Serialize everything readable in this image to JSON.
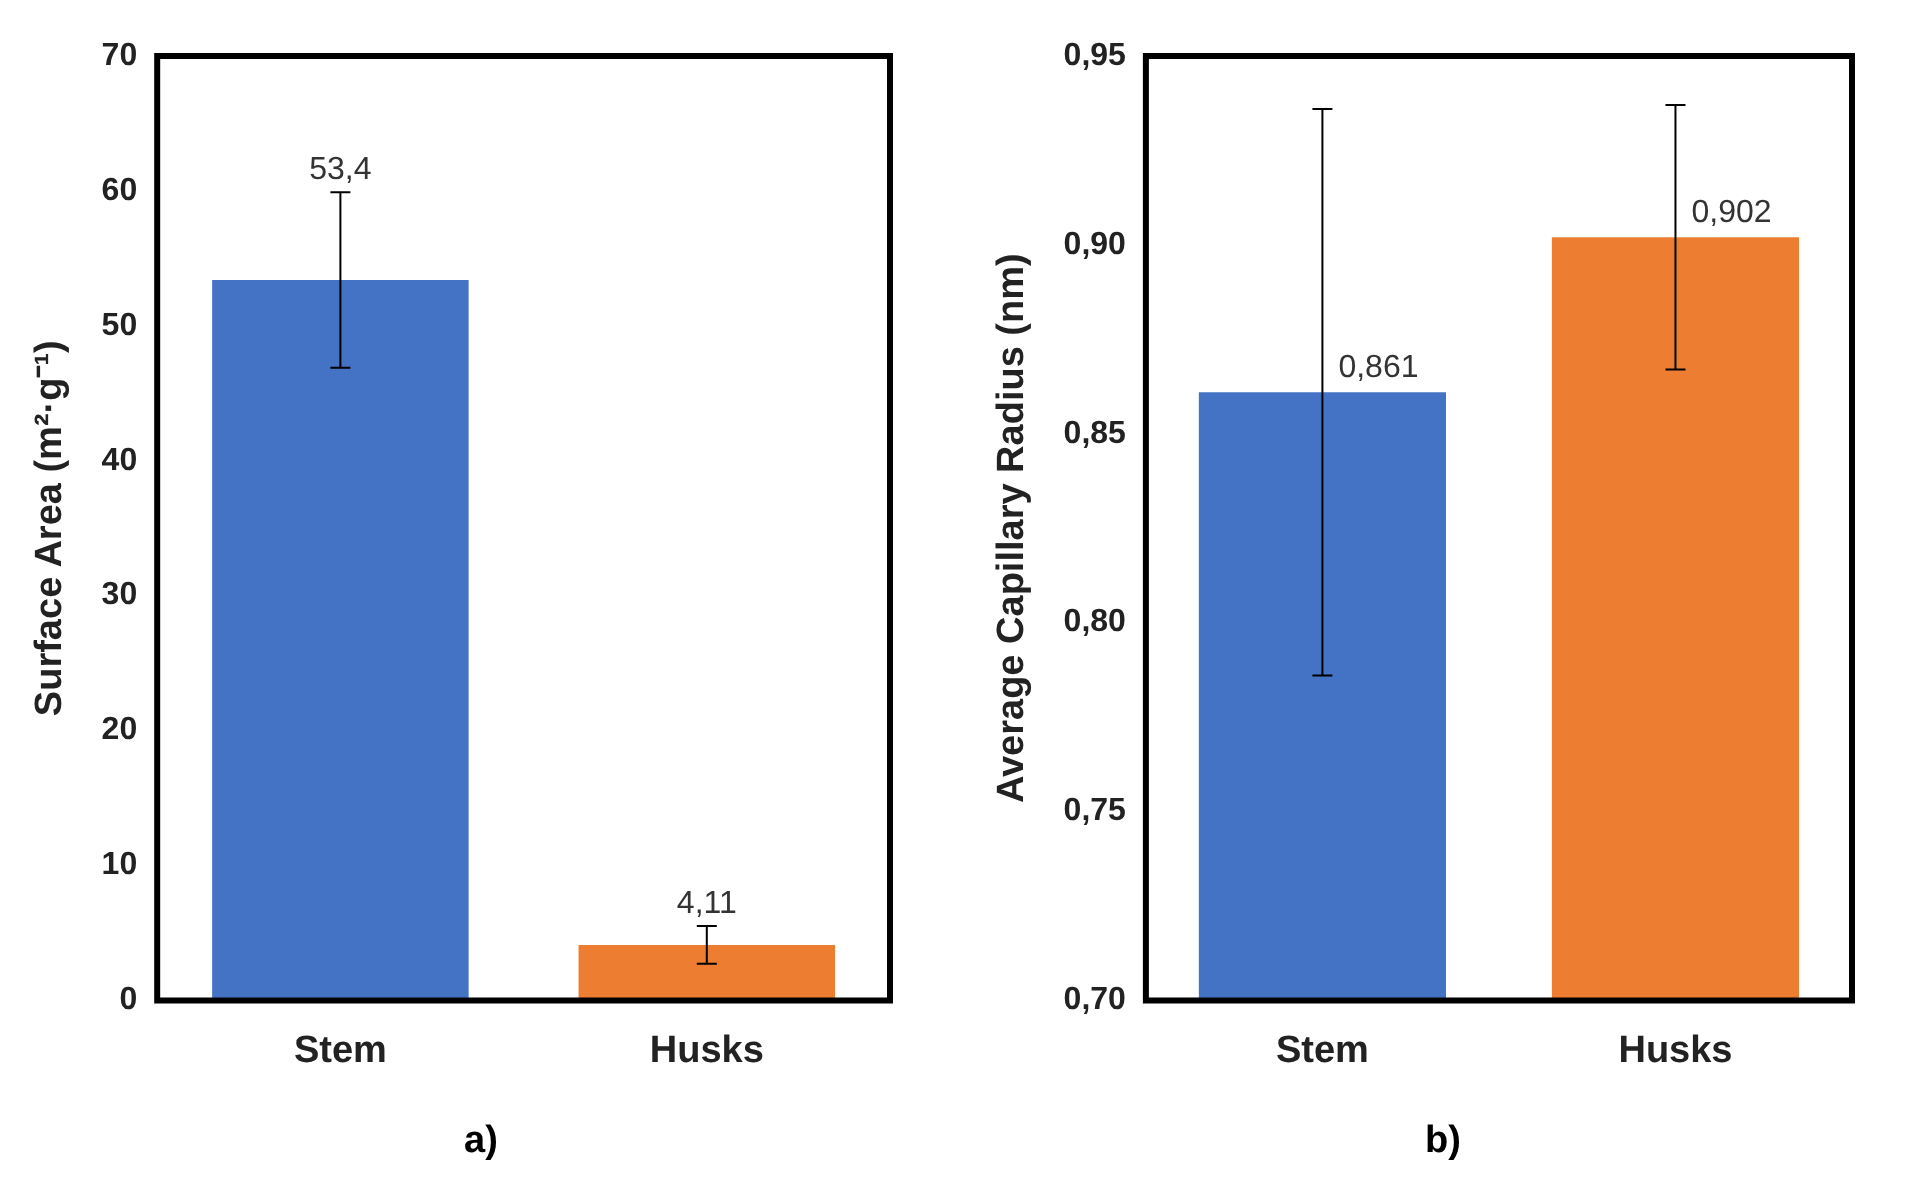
{
  "chart_data": [
    {
      "type": "bar",
      "categories": [
        "Stem",
        "Husks"
      ],
      "values": [
        53.4,
        4.11
      ],
      "colors": [
        "#4472c4",
        "#ed7d31"
      ],
      "value_labels": [
        "53,4",
        "4,11"
      ],
      "errors": [
        6.5,
        1.4
      ],
      "ylim": [
        0,
        70
      ],
      "yticks": [
        0,
        10,
        20,
        30,
        40,
        50,
        60,
        70
      ],
      "ylabel": "Surface Area (m²·g⁻¹)",
      "annotations": [
        "a)"
      ]
    },
    {
      "type": "bar",
      "categories": [
        "Stem",
        "Husks"
      ],
      "values": [
        0.861,
        0.902
      ],
      "colors": [
        "#4472c4",
        "#ed7d31"
      ],
      "value_labels": [
        "0,861",
        "0,902"
      ],
      "errors": [
        0.075,
        0.035
      ],
      "ylim": [
        0.7,
        0.95
      ],
      "yticks": [
        {
          "value": 0.7,
          "label": "0,70"
        },
        {
          "value": 0.75,
          "label": "0,75"
        },
        {
          "value": 0.8,
          "label": "0,80"
        },
        {
          "value": 0.85,
          "label": "0,85"
        },
        {
          "value": 0.9,
          "label": "0,90"
        },
        {
          "value": 0.95,
          "label": "0,95"
        }
      ],
      "ylabel": "Average Capillary Radius (nm)",
      "annotations": [
        "b)"
      ]
    }
  ]
}
